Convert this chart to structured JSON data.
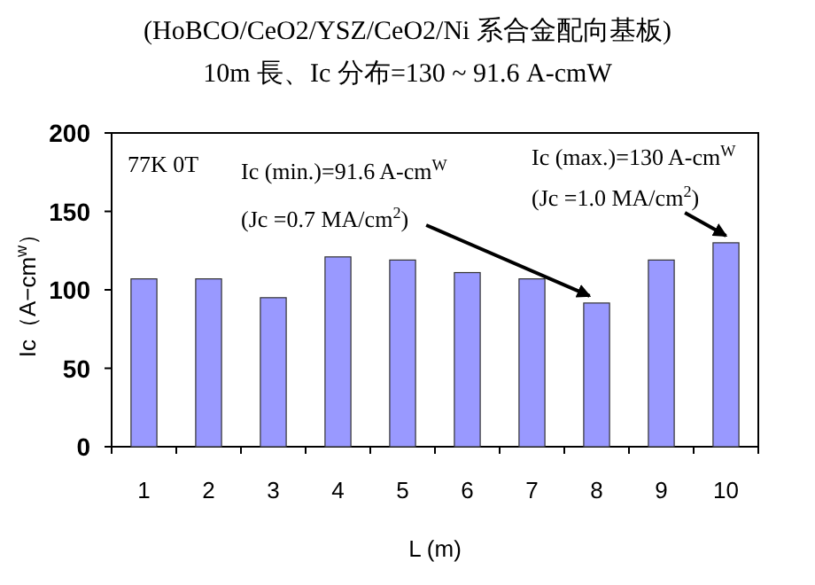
{
  "chart_data": {
    "type": "bar",
    "title": "(HoBCO/CeO2/YSZ/CeO2/Ni 系合金配向基板)",
    "subtitle": "10m 長、Ic 分布=130 ~ 91.6 A-cmW",
    "xlabel": "L (m)",
    "ylabel": "Ic（A−cm$^{w}$）",
    "categories": [
      "1",
      "2",
      "3",
      "4",
      "5",
      "6",
      "7",
      "8",
      "9",
      "10"
    ],
    "values": [
      107,
      107,
      95,
      121,
      119,
      111,
      107,
      91.6,
      119,
      130
    ],
    "color": "#9999ff",
    "ylim": [
      0,
      200
    ],
    "yticks": [
      0,
      50,
      100,
      150,
      200
    ],
    "annotations": [
      "77K 0T",
      "Ic (min.)=91.6 A-cm$^{W}$",
      {
        "text": "(Jc =0.7 MA/cm$^{2}$)",
        "x": "8",
        "y": 91.6
      },
      "Ic (max.)=130 A-cm$^{W}$",
      {
        "text": "(Jc =1.0 MA/cm$^{2}$)",
        "x": "10",
        "y": 130
      }
    ]
  }
}
